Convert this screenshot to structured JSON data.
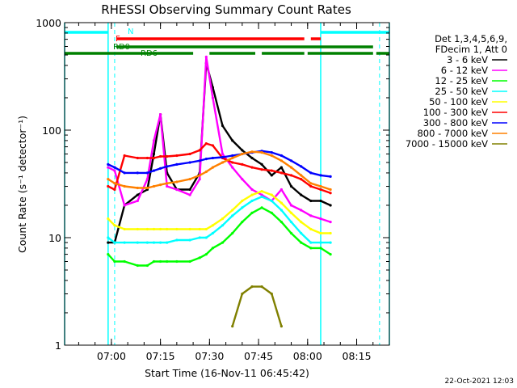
{
  "chart_data": {
    "type": "line",
    "title": "RHESSI Observing Summary Count Rates",
    "xlabel": "Start Time (16-Nov-11 06:45:42)",
    "ylabel": "Count Rate (s⁻¹ detector⁻¹)",
    "xlim": [
      "06:45:42",
      "08:25:00"
    ],
    "ylim": [
      1,
      1000
    ],
    "y_scale": "log",
    "x_ticks": [
      "07:00",
      "07:15",
      "07:30",
      "07:45",
      "08:00",
      "08:15"
    ],
    "y_ticks": [
      "1",
      "10",
      "100",
      "1000"
    ],
    "legend_header": [
      "Det 1,3,4,5,6,9,",
      "FDecim 1, Att 0"
    ],
    "legend_position": "top-right",
    "timestamp": "22-Oct-2021 12:03",
    "night_periods": [
      {
        "start": "06:45:42",
        "end": "06:59:00"
      },
      {
        "start": "08:04:00",
        "end": "08:25:00"
      }
    ],
    "saa_markers": [
      "07:01:00",
      "08:22:00"
    ],
    "flags": [
      {
        "label": "N",
        "color": "#00ffff",
        "segments": [
          [
            "06:45:42",
            "06:59:00"
          ],
          [
            "08:04:00",
            "08:25:00"
          ]
        ]
      },
      {
        "label": "F",
        "color": "#ff0000",
        "segments": [
          [
            "07:01:30",
            "07:59:00"
          ],
          [
            "08:01:00",
            "08:04:00"
          ]
        ]
      },
      {
        "label": "RD0",
        "color": "#008000",
        "segments": [
          [
            "07:01:30",
            "08:20:00"
          ]
        ]
      },
      {
        "label": "RD6",
        "color": "#008000",
        "segments": [
          [
            "06:45:42",
            "07:25:00"
          ],
          [
            "07:30:00",
            "07:44:00"
          ],
          [
            "07:46:00",
            "07:59:00"
          ],
          [
            "08:00:00",
            "08:20:00"
          ],
          [
            "08:21:00",
            "08:25:00"
          ]
        ]
      }
    ],
    "x": [
      "06:59",
      "07:01",
      "07:04",
      "07:08",
      "07:11",
      "07:13",
      "07:15",
      "07:17",
      "07:20",
      "07:24",
      "07:27",
      "07:29",
      "07:31",
      "07:34",
      "07:37",
      "07:40",
      "07:43",
      "07:46",
      "07:49",
      "07:52",
      "07:55",
      "07:58",
      "08:01",
      "08:04",
      "08:07"
    ],
    "series": [
      {
        "name": "3 - 6 keV",
        "color": "#000000",
        "values": [
          9,
          9,
          20,
          25,
          28,
          60,
          140,
          40,
          28,
          28,
          40,
          420,
          250,
          110,
          80,
          65,
          55,
          48,
          38,
          45,
          30,
          25,
          22,
          22,
          20
        ]
      },
      {
        "name": "6 - 12 keV",
        "color": "#ff00ff",
        "values": [
          45,
          42,
          20,
          22,
          35,
          80,
          140,
          30,
          28,
          25,
          35,
          480,
          200,
          60,
          45,
          35,
          28,
          25,
          22,
          28,
          20,
          18,
          16,
          15,
          14
        ]
      },
      {
        "name": "12 - 25 keV",
        "color": "#00ff00",
        "values": [
          7,
          6,
          6,
          5.5,
          5.5,
          6,
          6,
          6,
          6,
          6,
          6.5,
          7,
          8,
          9,
          11,
          14,
          17,
          19,
          17,
          14,
          11,
          9,
          8,
          8,
          7
        ]
      },
      {
        "name": "25 - 50 keV",
        "color": "#00ffff",
        "values": [
          10,
          9,
          9,
          9,
          9,
          9,
          9,
          9,
          9.5,
          9.5,
          10,
          10,
          11,
          13,
          16,
          19,
          22,
          24,
          22,
          18,
          14,
          11,
          9,
          9,
          9
        ]
      },
      {
        "name": "50 - 100 keV",
        "color": "#ffff00",
        "values": [
          15,
          13,
          12,
          12,
          12,
          12,
          12,
          12,
          12,
          12,
          12,
          12,
          13,
          15,
          18,
          22,
          25,
          27,
          25,
          21,
          17,
          14,
          12,
          11,
          11
        ]
      },
      {
        "name": "100 - 300 keV",
        "color": "#ff0000",
        "values": [
          30,
          28,
          58,
          55,
          55,
          55,
          57,
          57,
          58,
          60,
          65,
          75,
          72,
          55,
          50,
          48,
          45,
          43,
          42,
          40,
          38,
          35,
          30,
          28,
          26
        ]
      },
      {
        "name": "300 - 800 keV",
        "color": "#0000ff",
        "values": [
          48,
          45,
          40,
          40,
          40,
          42,
          44,
          46,
          48,
          50,
          52,
          54,
          55,
          56,
          58,
          60,
          62,
          64,
          62,
          58,
          52,
          46,
          40,
          38,
          37
        ]
      },
      {
        "name": "800 - 7000 keV",
        "color": "#ff8000",
        "values": [
          35,
          32,
          30,
          29,
          29,
          30,
          31,
          32,
          33,
          35,
          38,
          41,
          45,
          50,
          55,
          60,
          63,
          62,
          58,
          52,
          45,
          38,
          32,
          30,
          28
        ]
      },
      {
        "name": "7000 - 15000 keV",
        "color": "#808000",
        "values": [
          null,
          null,
          null,
          null,
          null,
          null,
          null,
          null,
          null,
          null,
          null,
          null,
          null,
          null,
          1.5,
          3,
          3.5,
          3.5,
          3,
          1.5,
          null,
          null,
          null,
          null,
          null
        ]
      }
    ]
  }
}
